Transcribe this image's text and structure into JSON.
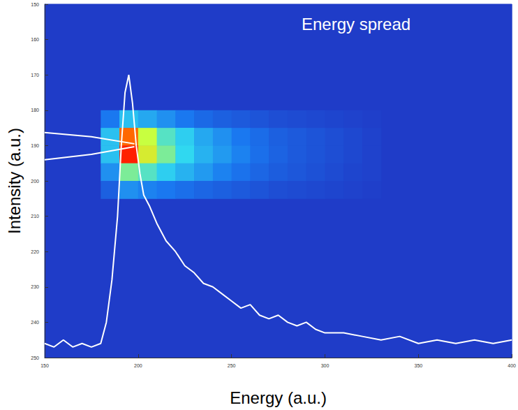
{
  "chart_data": {
    "type": "heatmap",
    "x_label": "Energy (a.u.)",
    "y_label": "Intensity (a.u.)",
    "annotations": [
      {
        "text": "Energy spread"
      }
    ],
    "xlim": [
      150,
      400
    ],
    "xticks": [
      150,
      200,
      250,
      300,
      350,
      400
    ],
    "ylim": [
      250,
      150
    ],
    "yticks": [
      150,
      160,
      170,
      180,
      190,
      200,
      210,
      220,
      230,
      240,
      250
    ],
    "grid": false,
    "cells": {
      "x": [
        180,
        190,
        200,
        210,
        220,
        230,
        240,
        250,
        260,
        270,
        280,
        290,
        300,
        310,
        320,
        330
      ],
      "y": [
        180,
        185,
        190,
        195,
        200,
        205
      ],
      "values": [
        [
          0.2,
          0.35,
          0.3,
          0.25,
          0.2,
          0.15,
          0.12,
          0.1,
          0.08,
          0.06,
          0.05,
          0.04,
          0.03,
          0.02,
          0.01
        ],
        [
          0.35,
          0.9,
          0.6,
          0.45,
          0.38,
          0.3,
          0.25,
          0.2,
          0.16,
          0.12,
          0.1,
          0.08,
          0.06,
          0.04,
          0.02
        ],
        [
          0.35,
          1.0,
          0.65,
          0.5,
          0.4,
          0.32,
          0.27,
          0.22,
          0.17,
          0.13,
          0.1,
          0.08,
          0.06,
          0.04,
          0.02
        ],
        [
          0.25,
          0.5,
          0.45,
          0.38,
          0.32,
          0.27,
          0.22,
          0.18,
          0.14,
          0.11,
          0.09,
          0.07,
          0.05,
          0.03,
          0.02
        ],
        [
          0.12,
          0.25,
          0.22,
          0.2,
          0.17,
          0.14,
          0.12,
          0.1,
          0.08,
          0.06,
          0.05,
          0.04,
          0.03,
          0.02,
          0.01
        ]
      ]
    },
    "cell_range": [
      0,
      1
    ],
    "series": [
      {
        "type": "line",
        "color": "#ffffff",
        "x": [
          150,
          155,
          160,
          165,
          170,
          175,
          180,
          183,
          186,
          189,
          191,
          193,
          195,
          197,
          199,
          201,
          203,
          206,
          210,
          215,
          220,
          225,
          230,
          235,
          240,
          245,
          250,
          255,
          260,
          265,
          270,
          275,
          280,
          285,
          290,
          295,
          300,
          310,
          320,
          330,
          340,
          350,
          360,
          370,
          380,
          390,
          400
        ],
        "values": [
          246,
          247,
          245,
          247,
          246,
          247,
          246,
          240,
          228,
          210,
          190,
          175,
          170,
          178,
          190,
          198,
          204,
          207,
          212,
          217,
          220,
          224,
          226,
          229,
          230,
          232,
          234,
          236,
          235,
          238,
          239,
          238,
          240,
          241,
          240,
          242,
          243,
          243,
          244,
          245,
          244,
          246,
          245,
          246,
          245,
          246,
          245
        ]
      },
      {
        "type": "line",
        "color": "#ffffff",
        "x": [
          150,
          175,
          198
        ],
        "values": [
          186.3,
          187.5,
          189.5
        ]
      },
      {
        "type": "line",
        "color": "#ffffff",
        "x": [
          150,
          175,
          198
        ],
        "values": [
          194,
          192.5,
          190.3
        ]
      }
    ]
  }
}
